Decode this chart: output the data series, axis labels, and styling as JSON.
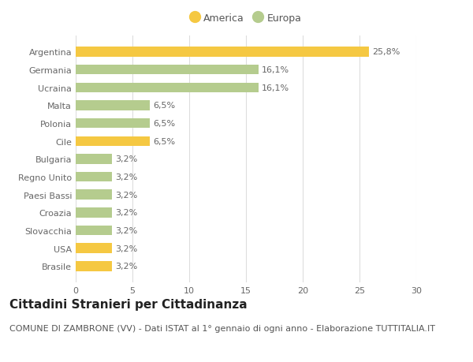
{
  "categories": [
    "Brasile",
    "USA",
    "Slovacchia",
    "Croazia",
    "Paesi Bassi",
    "Regno Unito",
    "Bulgaria",
    "Cile",
    "Polonia",
    "Malta",
    "Ucraina",
    "Germania",
    "Argentina"
  ],
  "values": [
    3.2,
    3.2,
    3.2,
    3.2,
    3.2,
    3.2,
    3.2,
    6.5,
    6.5,
    6.5,
    16.1,
    16.1,
    25.8
  ],
  "colors": [
    "#f5c842",
    "#f5c842",
    "#b5cc8e",
    "#b5cc8e",
    "#b5cc8e",
    "#b5cc8e",
    "#b5cc8e",
    "#f5c842",
    "#b5cc8e",
    "#b5cc8e",
    "#b5cc8e",
    "#b5cc8e",
    "#f5c842"
  ],
  "labels": [
    "3,2%",
    "3,2%",
    "3,2%",
    "3,2%",
    "3,2%",
    "3,2%",
    "3,2%",
    "6,5%",
    "6,5%",
    "6,5%",
    "16,1%",
    "16,1%",
    "25,8%"
  ],
  "america_color": "#f5c842",
  "europa_color": "#b5cc8e",
  "xlim": [
    0,
    30
  ],
  "xticks": [
    0,
    5,
    10,
    15,
    20,
    25,
    30
  ],
  "title": "Cittadini Stranieri per Cittadinanza",
  "subtitle": "COMUNE DI ZAMBRONE (VV) - Dati ISTAT al 1° gennaio di ogni anno - Elaborazione TUTTITALIA.IT",
  "background_color": "#ffffff",
  "bar_height": 0.55,
  "title_fontsize": 11,
  "subtitle_fontsize": 8,
  "label_fontsize": 8,
  "tick_fontsize": 8,
  "legend_fontsize": 9
}
